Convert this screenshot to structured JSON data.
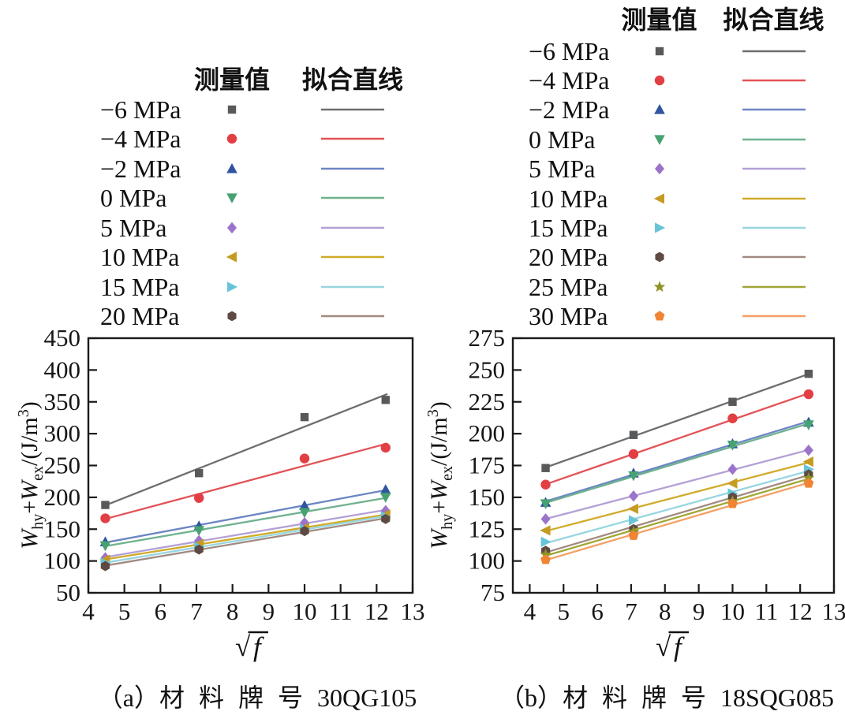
{
  "figure": {
    "background": "#ffffff",
    "legend_headers": {
      "measured": "测量值",
      "fitted": "拟合直线"
    }
  },
  "chart_data": [
    {
      "type": "scatter",
      "caption": "（a）材料牌号 30QG105",
      "caption_parts": [
        {
          "t": "n",
          "v": "（a）"
        },
        {
          "t": "cjk",
          "v": "材料牌号"
        },
        {
          "t": "n",
          "v": " 30QG105"
        }
      ],
      "xlabel": "√f",
      "ylabel": "Why+Wex/(J/m3)",
      "ylabel_parts": [
        {
          "t": "it",
          "v": "W"
        },
        {
          "t": "sub",
          "v": "hy"
        },
        {
          "t": "n",
          "v": "+"
        },
        {
          "t": "it",
          "v": "W"
        },
        {
          "t": "sub",
          "v": "ex"
        },
        {
          "t": "n",
          "v": "/(J/m"
        },
        {
          "t": "sup",
          "v": "3"
        },
        {
          "t": "n",
          "v": ")"
        }
      ],
      "xlim": [
        4,
        13
      ],
      "ylim": [
        50,
        450
      ],
      "xticks": [
        4,
        5,
        6,
        7,
        8,
        9,
        10,
        11,
        12,
        13
      ],
      "yticks": [
        50,
        100,
        150,
        200,
        250,
        300,
        350,
        400,
        450
      ],
      "x": [
        4.47,
        7.07,
        10,
        12.25
      ],
      "legend_position": "above",
      "series": [
        {
          "label": "−6 MPa",
          "marker": "square",
          "color": "#58595b",
          "line_color": "#6d6e70",
          "values": [
            188,
            238,
            326,
            353
          ]
        },
        {
          "label": "−4 MPa",
          "marker": "circle",
          "color": "#e23f44",
          "line_color": "#e25257",
          "values": [
            167,
            199,
            261,
            278
          ]
        },
        {
          "label": "−2 MPa",
          "marker": "triangle-up",
          "color": "#30549f",
          "line_color": "#6c86c3",
          "values": [
            130,
            155,
            187,
            212
          ]
        },
        {
          "label": "0 MPa",
          "marker": "triangle-down",
          "color": "#47a272",
          "line_color": "#6fb28e",
          "values": [
            124,
            148,
            176,
            200
          ]
        },
        {
          "label": "5 MPa",
          "marker": "diamond",
          "color": "#9c73ca",
          "line_color": "#b3a0d6",
          "values": [
            105,
            132,
            160,
            179
          ]
        },
        {
          "label": "10 MPa",
          "marker": "triangle-left",
          "color": "#c59b22",
          "line_color": "#d0ab28",
          "values": [
            102,
            127,
            152,
            173
          ]
        },
        {
          "label": "15 MPa",
          "marker": "triangle-right",
          "color": "#68c5d8",
          "line_color": "#97d6e0",
          "values": [
            97,
            122,
            150,
            170
          ]
        },
        {
          "label": "20 MPa",
          "marker": "hexagon",
          "color": "#5e4a42",
          "line_color": "#a18a82",
          "values": [
            92,
            118,
            147,
            166
          ]
        }
      ]
    },
    {
      "type": "scatter",
      "caption": "（b）材料牌号 18SQG085",
      "caption_parts": [
        {
          "t": "n",
          "v": "（b）"
        },
        {
          "t": "cjk",
          "v": "材料牌号"
        },
        {
          "t": "n",
          "v": " 18SQG085"
        }
      ],
      "xlabel": "√f",
      "ylabel": "Why+Wex/(J/m3)",
      "ylabel_parts": [
        {
          "t": "it",
          "v": "W"
        },
        {
          "t": "sub",
          "v": "hy"
        },
        {
          "t": "n",
          "v": "+"
        },
        {
          "t": "it",
          "v": "W"
        },
        {
          "t": "sub",
          "v": "ex"
        },
        {
          "t": "n",
          "v": "/(J/m"
        },
        {
          "t": "sup",
          "v": "3"
        },
        {
          "t": "n",
          "v": ")"
        }
      ],
      "xlim": [
        3.5,
        13
      ],
      "ylim": [
        75,
        275
      ],
      "xticks": [
        4,
        5,
        6,
        7,
        8,
        9,
        10,
        11,
        12,
        13
      ],
      "yticks": [
        75,
        100,
        125,
        150,
        175,
        200,
        225,
        250,
        275
      ],
      "x": [
        4.47,
        7.07,
        10,
        12.25
      ],
      "legend_position": "above",
      "series": [
        {
          "label": "−6 MPa",
          "marker": "square",
          "color": "#58595b",
          "line_color": "#6d6e70",
          "values": [
            173,
            199,
            225,
            247
          ]
        },
        {
          "label": "−4 MPa",
          "marker": "circle",
          "color": "#e23f44",
          "line_color": "#e25257",
          "values": [
            160,
            184,
            212,
            231
          ]
        },
        {
          "label": "−2 MPa",
          "marker": "triangle-up",
          "color": "#30549f",
          "line_color": "#6c86c3",
          "values": [
            146,
            169,
            192,
            209
          ]
        },
        {
          "label": "0 MPa",
          "marker": "triangle-down",
          "color": "#47a272",
          "line_color": "#6fb28e",
          "values": [
            145,
            167,
            191,
            207
          ]
        },
        {
          "label": "5 MPa",
          "marker": "diamond",
          "color": "#9c73ca",
          "line_color": "#b3a0d6",
          "values": [
            133,
            151,
            172,
            187
          ]
        },
        {
          "label": "10 MPa",
          "marker": "triangle-left",
          "color": "#c59b22",
          "line_color": "#d0ab28",
          "values": [
            124,
            141,
            161,
            178
          ]
        },
        {
          "label": "15 MPa",
          "marker": "triangle-right",
          "color": "#68c5d8",
          "line_color": "#97d6e0",
          "values": [
            115,
            132,
            153,
            172
          ]
        },
        {
          "label": "20 MPa",
          "marker": "hexagon",
          "color": "#5e4a42",
          "line_color": "#a18a82",
          "values": [
            108,
            125,
            150,
            168
          ]
        },
        {
          "label": "25 MPa",
          "marker": "star",
          "color": "#8e9426",
          "line_color": "#a0a733",
          "values": [
            105,
            123,
            147,
            165
          ]
        },
        {
          "label": "30 MPa",
          "marker": "pentagon",
          "color": "#f08434",
          "line_color": "#f4a065",
          "values": [
            101,
            120,
            145,
            161
          ]
        }
      ]
    }
  ]
}
